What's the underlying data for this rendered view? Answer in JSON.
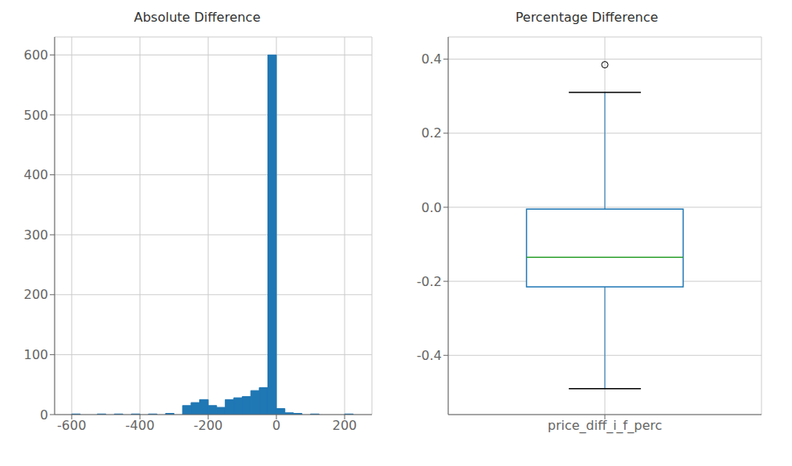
{
  "chart_data": [
    {
      "type": "histogram",
      "title": "Absolute Difference",
      "bins": [
        -600,
        -575,
        -550,
        -525,
        -500,
        -475,
        -450,
        -425,
        -400,
        -375,
        -350,
        -325,
        -300,
        -275,
        -250,
        -225,
        -200,
        -175,
        -150,
        -125,
        -100,
        -75,
        -50,
        -25,
        0,
        25,
        50,
        75,
        100,
        125,
        150,
        175,
        200,
        225,
        250
      ],
      "counts": [
        1,
        0,
        0,
        1,
        0,
        1,
        0,
        1,
        0,
        1,
        0,
        2,
        0,
        15,
        20,
        25,
        15,
        12,
        25,
        28,
        30,
        40,
        45,
        600,
        10,
        3,
        2,
        0,
        1,
        0,
        0,
        0,
        1,
        0
      ],
      "color": "#1f77b4",
      "xlim": [
        -650,
        280
      ],
      "ylim": [
        0,
        630
      ],
      "xticks": [
        -600,
        -400,
        -200,
        0,
        200
      ],
      "yticks": [
        0,
        100,
        200,
        300,
        400,
        500,
        600
      ],
      "grid": true
    },
    {
      "type": "box",
      "title": "Percentage Difference",
      "categories": [
        "price_diff_i_f_perc"
      ],
      "q1": -0.215,
      "median": -0.135,
      "q3": -0.005,
      "whisker_low": -0.49,
      "whisker_high": 0.31,
      "outliers": [
        0.385
      ],
      "color": "#1f77b4",
      "median_color": "#2ca02c",
      "ylim": [
        -0.56,
        0.46
      ],
      "yticks": [
        -0.4,
        -0.2,
        {
          "value": 0,
          "label": "0.0"
        },
        0.2,
        0.4
      ],
      "grid": true
    }
  ]
}
